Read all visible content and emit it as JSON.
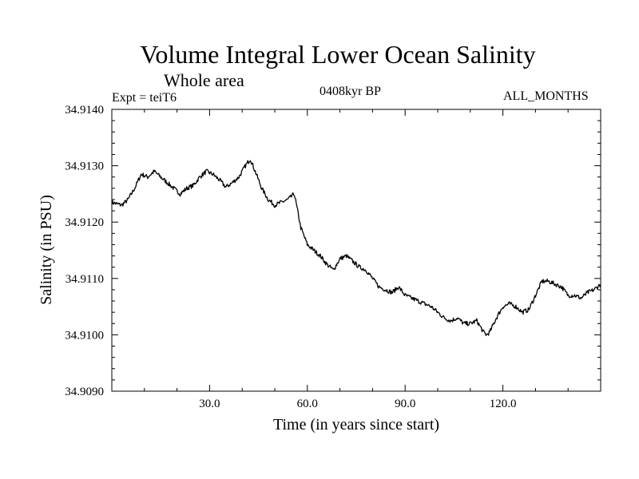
{
  "chart_data": {
    "type": "line",
    "title": "Volume Integral Lower Ocean Salinity",
    "subtitle": "Whole area",
    "experiment_label": "Expt = teiT6",
    "period_label": "0408kyr BP",
    "months_label": "ALL_MONTHS",
    "xlabel": "Time (in years since start)",
    "ylabel": "Salinity (in PSU)",
    "xlim": [
      0,
      150
    ],
    "ylim": [
      34.909,
      34.914
    ],
    "x_ticks": [
      30,
      60,
      90,
      120
    ],
    "x_tick_labels": [
      "30.0",
      "60.0",
      "90.0",
      "120.0"
    ],
    "y_ticks": [
      34.909,
      34.91,
      34.911,
      34.912,
      34.913,
      34.914
    ],
    "y_tick_labels": [
      "34.9090",
      "34.9100",
      "34.9110",
      "34.9120",
      "34.9130",
      "34.9140"
    ],
    "grid": false,
    "series": [
      {
        "name": "Salinity",
        "color": "#000000",
        "x": [
          0,
          3,
          5,
          7,
          9,
          11,
          13,
          15,
          17,
          19,
          21,
          23,
          25,
          27,
          29,
          31,
          33,
          35,
          37,
          39,
          41,
          42.5,
          44,
          46,
          48,
          50,
          52,
          54,
          56,
          58,
          60,
          62,
          64,
          66,
          68,
          70,
          72,
          74,
          76,
          78,
          80,
          82,
          84,
          86,
          88,
          90,
          92,
          94,
          96,
          98,
          100,
          102,
          104,
          106,
          108,
          110,
          112,
          114,
          115,
          116,
          118,
          120,
          122,
          124,
          126,
          128,
          130,
          132,
          134,
          136,
          138,
          140,
          142,
          144,
          146,
          148,
          150
        ],
        "values": [
          34.91235,
          34.9123,
          34.9124,
          34.9126,
          34.91285,
          34.9128,
          34.9129,
          34.9128,
          34.9127,
          34.9126,
          34.9125,
          34.9126,
          34.91265,
          34.9128,
          34.9129,
          34.91285,
          34.91275,
          34.91262,
          34.9127,
          34.9128,
          34.913,
          34.91312,
          34.9129,
          34.9126,
          34.9124,
          34.9123,
          34.91235,
          34.9124,
          34.9125,
          34.9119,
          34.9116,
          34.9115,
          34.9114,
          34.91125,
          34.91115,
          34.91135,
          34.9114,
          34.9113,
          34.9112,
          34.91115,
          34.911,
          34.91085,
          34.9108,
          34.91075,
          34.91085,
          34.9107,
          34.91065,
          34.9106,
          34.91055,
          34.9105,
          34.9104,
          34.9103,
          34.91025,
          34.9103,
          34.9102,
          34.9102,
          34.91025,
          34.91005,
          34.91,
          34.91005,
          34.9103,
          34.9105,
          34.91055,
          34.9105,
          34.9104,
          34.91045,
          34.9107,
          34.91095,
          34.91095,
          34.9109,
          34.91085,
          34.9107,
          34.9107,
          34.91065,
          34.91075,
          34.9108,
          34.9109
        ]
      }
    ]
  }
}
